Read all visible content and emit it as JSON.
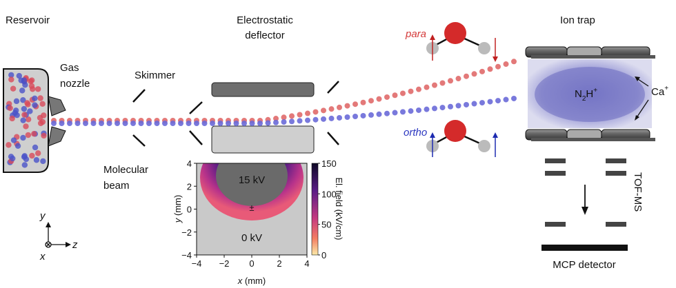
{
  "labels": {
    "reservoir": "Reservoir",
    "gas_nozzle": [
      "Gas",
      "nozzle"
    ],
    "skimmer": "Skimmer",
    "molecular_beam": [
      "Molecular",
      "beam"
    ],
    "deflector": [
      "Electrostatic",
      "deflector"
    ],
    "para": "para",
    "ortho": "ortho",
    "ion_trap": "Ion trap",
    "ca_ion": [
      "Ca",
      "+"
    ],
    "trapped_ion": [
      "N",
      "2",
      "H",
      "+"
    ],
    "tof_ms": "TOF-MS",
    "mcp_detector": "MCP detector",
    "axes": {
      "y": "y",
      "z": "z",
      "x": "x"
    }
  },
  "inset": {
    "electrode_top": "15 kV",
    "electrode_bottom": "0 kV",
    "center_mark": "±",
    "x_ticks": [
      "−4",
      "−2",
      "0",
      "2",
      "4"
    ],
    "y_ticks": [
      "4",
      "2",
      "0",
      "−2",
      "−4"
    ],
    "x_label": [
      "x",
      " (mm)"
    ],
    "y_label": [
      "y",
      " (mm)"
    ],
    "colorbar_ticks": [
      "150",
      "100",
      "50",
      "0"
    ],
    "colorbar_label": "El. field (kV/cm)"
  }
}
